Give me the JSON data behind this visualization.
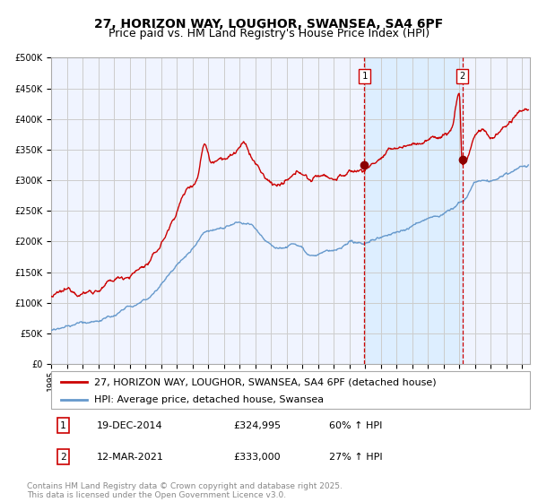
{
  "title": "27, HORIZON WAY, LOUGHOR, SWANSEA, SA4 6PF",
  "subtitle": "Price paid vs. HM Land Registry's House Price Index (HPI)",
  "ylim": [
    0,
    500000
  ],
  "yticks": [
    0,
    50000,
    100000,
    150000,
    200000,
    250000,
    300000,
    350000,
    400000,
    450000,
    500000
  ],
  "xlim_start": 1995.0,
  "xlim_end": 2025.5,
  "red_line_color": "#cc0000",
  "blue_line_color": "#6699cc",
  "vline1_x": 2014.96,
  "vline2_x": 2021.19,
  "marker1_x": 2014.96,
  "marker1_y": 324995,
  "marker2_x": 2021.19,
  "marker2_y": 333000,
  "shade_start": 2014.96,
  "shade_end": 2021.19,
  "shade_color": "#ddeeff",
  "grid_color": "#cccccc",
  "background_color": "#f0f4ff",
  "legend_line1": "27, HORIZON WAY, LOUGHOR, SWANSEA, SA4 6PF (detached house)",
  "legend_line2": "HPI: Average price, detached house, Swansea",
  "annotation1_label": "1",
  "annotation1_date": "19-DEC-2014",
  "annotation1_price": "£324,995",
  "annotation1_hpi": "60% ↑ HPI",
  "annotation2_label": "2",
  "annotation2_date": "12-MAR-2021",
  "annotation2_price": "£333,000",
  "annotation2_hpi": "27% ↑ HPI",
  "footer": "Contains HM Land Registry data © Crown copyright and database right 2025.\nThis data is licensed under the Open Government Licence v3.0.",
  "title_fontsize": 10,
  "subtitle_fontsize": 9,
  "tick_fontsize": 7,
  "legend_fontsize": 8,
  "annotation_fontsize": 8,
  "footer_fontsize": 6.5
}
